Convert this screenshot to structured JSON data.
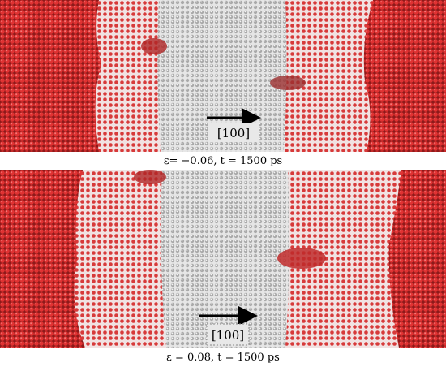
{
  "panels": [
    {
      "direction": "[100]",
      "caption": "ε= −0.06, t = 1500 ps"
    },
    {
      "direction": "[100]",
      "caption": "ε = 0.08, t = 1500 ps"
    }
  ]
}
